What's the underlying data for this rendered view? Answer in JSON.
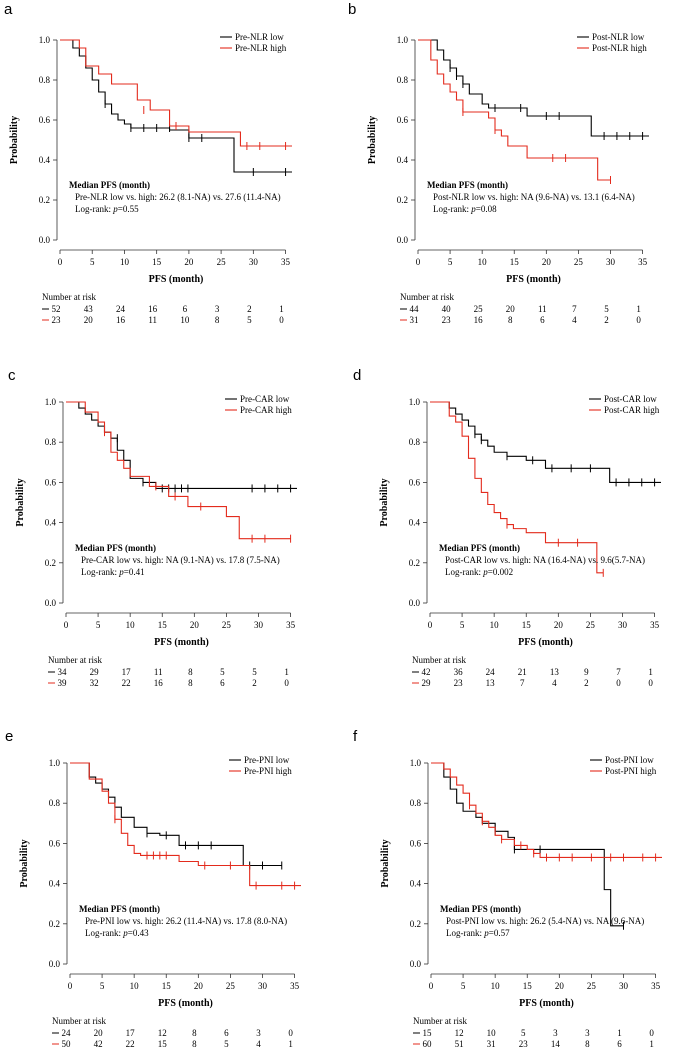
{
  "chart_data": [
    {
      "type": "line",
      "panel": "a",
      "ylabel": "Probability",
      "xlabel": "PFS (month)",
      "xticks": [
        0,
        5,
        10,
        15,
        20,
        25,
        30,
        35
      ],
      "yticks": [
        "0.0",
        "0.2",
        "0.4",
        "0.6",
        "0.8",
        "1.0"
      ],
      "xlim": [
        0,
        36
      ],
      "ylim": [
        0,
        1
      ],
      "series": [
        {
          "name": "Pre-NLR low",
          "color": "#000000",
          "x": [
            0,
            2,
            3,
            4,
            5,
            6,
            7,
            8,
            9,
            10,
            11,
            13,
            15,
            17,
            20,
            27,
            36
          ],
          "y": [
            1.0,
            0.96,
            0.92,
            0.86,
            0.8,
            0.74,
            0.68,
            0.63,
            0.6,
            0.58,
            0.56,
            0.56,
            0.56,
            0.55,
            0.51,
            0.34,
            0.34
          ],
          "censor_x": [
            7,
            11,
            13,
            15,
            17,
            20,
            22,
            30,
            35
          ],
          "censor_y": [
            0.68,
            0.56,
            0.56,
            0.56,
            0.56,
            0.51,
            0.51,
            0.34,
            0.34
          ]
        },
        {
          "name": "Pre-NLR high",
          "color": "#e32b1d",
          "x": [
            0,
            3,
            4,
            6,
            8,
            12,
            14,
            17,
            20,
            28,
            36
          ],
          "y": [
            1.0,
            0.96,
            0.87,
            0.83,
            0.78,
            0.7,
            0.65,
            0.57,
            0.54,
            0.47,
            0.47
          ],
          "censor_x": [
            13,
            18,
            29,
            31,
            35
          ],
          "censor_y": [
            0.65,
            0.57,
            0.47,
            0.47,
            0.47
          ]
        }
      ],
      "legend": [
        "Pre-NLR low",
        "Pre-NLR high"
      ],
      "median_title": "Median PFS (month)",
      "median_text": "Pre-NLR low vs. high: 26.2 (8.1-NA) vs. 27.6 (11.4-NA)",
      "logrank_text": "Log-rank: p=0.55",
      "risk_title": "Number at risk",
      "risk_rows": [
        {
          "color": "#000000",
          "values": [
            "52",
            "43",
            "24",
            "16",
            "6",
            "3",
            "2",
            "1"
          ]
        },
        {
          "color": "#e32b1d",
          "values": [
            "23",
            "20",
            "16",
            "11",
            "10",
            "8",
            "5",
            "0"
          ]
        }
      ]
    },
    {
      "type": "line",
      "panel": "b",
      "ylabel": "Probability",
      "xlabel": "PFS (month)",
      "xticks": [
        0,
        5,
        10,
        15,
        20,
        25,
        30,
        35
      ],
      "yticks": [
        "0.0",
        "0.2",
        "0.4",
        "0.6",
        "0.8",
        "1.0"
      ],
      "xlim": [
        0,
        36
      ],
      "ylim": [
        0,
        1
      ],
      "series": [
        {
          "name": "Post-NLR low",
          "color": "#000000",
          "x": [
            0,
            3,
            4,
            5,
            6,
            7,
            8,
            10,
            11,
            17,
            27,
            36
          ],
          "y": [
            1.0,
            0.95,
            0.9,
            0.86,
            0.82,
            0.78,
            0.73,
            0.68,
            0.66,
            0.62,
            0.52,
            0.52
          ],
          "censor_x": [
            5,
            6,
            7,
            12,
            16,
            20,
            22,
            29,
            31,
            33,
            35
          ],
          "censor_y": [
            0.86,
            0.82,
            0.78,
            0.66,
            0.66,
            0.62,
            0.62,
            0.52,
            0.52,
            0.52,
            0.52
          ]
        },
        {
          "name": "Post-NLR high",
          "color": "#e32b1d",
          "x": [
            0,
            2,
            3,
            4,
            5,
            6,
            7,
            11,
            12,
            13,
            14,
            17,
            28,
            30
          ],
          "y": [
            1.0,
            0.9,
            0.83,
            0.78,
            0.74,
            0.7,
            0.64,
            0.61,
            0.55,
            0.52,
            0.47,
            0.41,
            0.3,
            0.3
          ],
          "censor_x": [
            7,
            12,
            21,
            23,
            30
          ],
          "censor_y": [
            0.64,
            0.55,
            0.41,
            0.41,
            0.3
          ]
        }
      ],
      "legend": [
        "Post-NLR low",
        "Post-NLR high"
      ],
      "median_title": "Median PFS (month)",
      "median_text": "Post-NLR low vs. high: NA (9.6-NA) vs. 13.1 (6.4-NA)",
      "logrank_text": "Log-rank: p=0.08",
      "risk_title": "Number at risk",
      "risk_rows": [
        {
          "color": "#000000",
          "values": [
            "44",
            "40",
            "25",
            "20",
            "11",
            "7",
            "5",
            "1"
          ]
        },
        {
          "color": "#e32b1d",
          "values": [
            "31",
            "23",
            "16",
            "8",
            "6",
            "4",
            "2",
            "0"
          ]
        }
      ]
    },
    {
      "type": "line",
      "panel": "c",
      "ylabel": "Probability",
      "xlabel": "PFS (month)",
      "xticks": [
        0,
        5,
        10,
        15,
        20,
        25,
        30,
        35
      ],
      "yticks": [
        "0.0",
        "0.2",
        "0.4",
        "0.6",
        "0.8",
        "1.0"
      ],
      "xlim": [
        0,
        36
      ],
      "ylim": [
        0,
        1
      ],
      "series": [
        {
          "name": "Pre-CAR low",
          "color": "#000000",
          "x": [
            0,
            2,
            3,
            4,
            5,
            6,
            7,
            8,
            9,
            10,
            12,
            14,
            36
          ],
          "y": [
            1.0,
            0.97,
            0.94,
            0.91,
            0.88,
            0.85,
            0.82,
            0.76,
            0.71,
            0.62,
            0.6,
            0.57,
            0.57
          ],
          "censor_x": [
            8,
            12,
            15,
            16,
            17,
            18,
            19,
            29,
            31,
            33,
            35
          ],
          "censor_y": [
            0.82,
            0.6,
            0.57,
            0.57,
            0.57,
            0.57,
            0.57,
            0.57,
            0.57,
            0.57,
            0.57
          ]
        },
        {
          "name": "Pre-CAR high",
          "color": "#e32b1d",
          "x": [
            0,
            3,
            5,
            6,
            7,
            8,
            9,
            10,
            13,
            16,
            19,
            25,
            27,
            35
          ],
          "y": [
            1.0,
            0.95,
            0.9,
            0.85,
            0.75,
            0.71,
            0.67,
            0.63,
            0.58,
            0.53,
            0.48,
            0.43,
            0.32,
            0.32
          ],
          "censor_x": [
            6,
            14,
            17,
            21,
            29,
            31,
            35
          ],
          "censor_y": [
            0.85,
            0.58,
            0.53,
            0.48,
            0.32,
            0.32,
            0.32
          ]
        }
      ],
      "legend": [
        "Pre-CAR low",
        "Pre-CAR high"
      ],
      "median_title": "Median PFS (month)",
      "median_text": "Pre-CAR low vs. high: NA (9.1-NA) vs. 17.8 (7.5-NA)",
      "logrank_text": "Log-rank: p=0.41",
      "risk_title": "Number at risk",
      "risk_rows": [
        {
          "color": "#000000",
          "values": [
            "34",
            "29",
            "17",
            "11",
            "8",
            "5",
            "5",
            "1"
          ]
        },
        {
          "color": "#e32b1d",
          "values": [
            "39",
            "32",
            "22",
            "16",
            "8",
            "6",
            "2",
            "0"
          ]
        }
      ]
    },
    {
      "type": "line",
      "panel": "d",
      "ylabel": "Probability",
      "xlabel": "PFS (month)",
      "xticks": [
        0,
        5,
        10,
        15,
        20,
        25,
        30,
        35
      ],
      "yticks": [
        "0.0",
        "0.2",
        "0.4",
        "0.6",
        "0.8",
        "1.0"
      ],
      "xlim": [
        0,
        36
      ],
      "ylim": [
        0,
        1
      ],
      "series": [
        {
          "name": "Post-CAR low",
          "color": "#000000",
          "x": [
            0,
            3,
            4,
            5,
            6,
            7,
            8,
            9,
            10,
            12,
            15,
            18,
            28,
            36
          ],
          "y": [
            1.0,
            0.97,
            0.94,
            0.91,
            0.88,
            0.84,
            0.81,
            0.78,
            0.75,
            0.73,
            0.71,
            0.67,
            0.6,
            0.6
          ],
          "censor_x": [
            7,
            8,
            12,
            16,
            19,
            22,
            25,
            29,
            31,
            33,
            35
          ],
          "censor_y": [
            0.84,
            0.81,
            0.73,
            0.71,
            0.67,
            0.67,
            0.67,
            0.6,
            0.6,
            0.6,
            0.6
          ]
        },
        {
          "name": "Post-CAR high",
          "color": "#e32b1d",
          "x": [
            0,
            3,
            4,
            5,
            6,
            7,
            8,
            9,
            10,
            11,
            12,
            13,
            15,
            18,
            22,
            26,
            27
          ],
          "y": [
            1.0,
            0.93,
            0.9,
            0.83,
            0.72,
            0.62,
            0.55,
            0.49,
            0.45,
            0.42,
            0.39,
            0.37,
            0.35,
            0.3,
            0.3,
            0.15,
            0.15
          ],
          "censor_x": [
            12,
            20,
            23,
            27
          ],
          "censor_y": [
            0.39,
            0.3,
            0.3,
            0.15
          ]
        }
      ],
      "legend": [
        "Post-CAR low",
        "Post-CAR high"
      ],
      "median_title": "Median PFS (month)",
      "median_text": "Post-CAR low vs. high: NA (16.4-NA) vs. 9.6(5.7-NA)",
      "logrank_text": "Log-rank: p=0.002",
      "risk_title": "Number at risk",
      "risk_rows": [
        {
          "color": "#000000",
          "values": [
            "42",
            "36",
            "24",
            "21",
            "13",
            "9",
            "7",
            "1"
          ]
        },
        {
          "color": "#e32b1d",
          "values": [
            "29",
            "23",
            "13",
            "7",
            "4",
            "2",
            "0",
            "0"
          ]
        }
      ]
    },
    {
      "type": "line",
      "panel": "e",
      "ylabel": "Probability",
      "xlabel": "PFS (month)",
      "xticks": [
        0,
        5,
        10,
        15,
        20,
        25,
        30,
        35
      ],
      "yticks": [
        "0.0",
        "0.2",
        "0.4",
        "0.6",
        "0.8",
        "1.0"
      ],
      "xlim": [
        0,
        36
      ],
      "ylim": [
        0,
        1
      ],
      "series": [
        {
          "name": "Pre-PNI low",
          "color": "#000000",
          "x": [
            0,
            3,
            4,
            5,
            6,
            7,
            8,
            10,
            12,
            14,
            17,
            27,
            33
          ],
          "y": [
            1.0,
            0.93,
            0.9,
            0.87,
            0.83,
            0.78,
            0.73,
            0.68,
            0.65,
            0.64,
            0.59,
            0.49,
            0.49
          ],
          "censor_x": [
            6,
            12,
            15,
            18,
            20,
            22,
            28,
            30,
            33
          ],
          "censor_y": [
            0.83,
            0.65,
            0.64,
            0.59,
            0.59,
            0.59,
            0.49,
            0.49,
            0.49
          ]
        },
        {
          "name": "Pre-PNI high",
          "color": "#e32b1d",
          "x": [
            0,
            3,
            5,
            6,
            7,
            8,
            9,
            10,
            11,
            13,
            17,
            20,
            28,
            36
          ],
          "y": [
            1.0,
            0.92,
            0.86,
            0.8,
            0.72,
            0.65,
            0.59,
            0.55,
            0.54,
            0.54,
            0.51,
            0.49,
            0.39,
            0.39
          ],
          "censor_x": [
            7,
            12,
            13,
            14,
            15,
            21,
            25,
            29,
            33,
            35
          ],
          "censor_y": [
            0.72,
            0.54,
            0.54,
            0.54,
            0.54,
            0.49,
            0.49,
            0.39,
            0.39,
            0.39
          ]
        }
      ],
      "legend": [
        "Pre-PNI low",
        "Pre-PNI high"
      ],
      "median_title": "Median PFS (month)",
      "median_text": "Pre-PNI low vs. high: 26.2 (11.4-NA) vs. 17.8 (8.0-NA)",
      "logrank_text": "Log-rank: p=0.43",
      "risk_title": "Number at risk",
      "risk_rows": [
        {
          "color": "#000000",
          "values": [
            "24",
            "20",
            "17",
            "12",
            "8",
            "6",
            "3",
            "0"
          ]
        },
        {
          "color": "#e32b1d",
          "values": [
            "50",
            "42",
            "22",
            "15",
            "8",
            "5",
            "4",
            "1"
          ]
        }
      ]
    },
    {
      "type": "line",
      "panel": "f",
      "ylabel": "Probability",
      "xlabel": "PFS (month)",
      "xticks": [
        0,
        5,
        10,
        15,
        20,
        25,
        30,
        35
      ],
      "yticks": [
        "0.0",
        "0.2",
        "0.4",
        "0.6",
        "0.8",
        "1.0"
      ],
      "xlim": [
        0,
        36
      ],
      "ylim": [
        0,
        1
      ],
      "series": [
        {
          "name": "Post-PNI low",
          "color": "#000000",
          "x": [
            0,
            2,
            3,
            4,
            5,
            7,
            8,
            10,
            12,
            13,
            26,
            27,
            28,
            30
          ],
          "y": [
            1.0,
            0.93,
            0.87,
            0.8,
            0.76,
            0.73,
            0.7,
            0.66,
            0.63,
            0.57,
            0.57,
            0.37,
            0.19,
            0.19
          ],
          "censor_x": [
            10,
            13,
            17,
            30
          ],
          "censor_y": [
            0.66,
            0.57,
            0.57,
            0.19
          ]
        },
        {
          "name": "Post-PNI high",
          "color": "#e32b1d",
          "x": [
            0,
            2,
            3,
            4,
            5,
            6,
            7,
            8,
            9,
            10,
            11,
            13,
            15,
            16,
            17,
            36
          ],
          "y": [
            1.0,
            0.97,
            0.93,
            0.89,
            0.85,
            0.79,
            0.75,
            0.71,
            0.68,
            0.64,
            0.62,
            0.59,
            0.57,
            0.55,
            0.53,
            0.53
          ],
          "censor_x": [
            6,
            8,
            11,
            14,
            16,
            18,
            20,
            22,
            25,
            28,
            30,
            33,
            35
          ],
          "censor_y": [
            0.79,
            0.71,
            0.62,
            0.59,
            0.55,
            0.53,
            0.53,
            0.53,
            0.53,
            0.53,
            0.53,
            0.53,
            0.53
          ]
        }
      ],
      "legend": [
        "Post-PNI low",
        "Post-PNI high"
      ],
      "median_title": "Median PFS (month)",
      "median_text": "Post-PNI low vs. high: 26.2 (5.4-NA) vs. NA (9.6-NA)",
      "logrank_text": "Log-rank: p=0.57",
      "risk_title": "Number at risk",
      "risk_rows": [
        {
          "color": "#000000",
          "values": [
            "15",
            "12",
            "10",
            "5",
            "3",
            "3",
            "1",
            "0"
          ]
        },
        {
          "color": "#e32b1d",
          "values": [
            "60",
            "51",
            "31",
            "23",
            "14",
            "8",
            "6",
            "1"
          ]
        }
      ]
    }
  ]
}
